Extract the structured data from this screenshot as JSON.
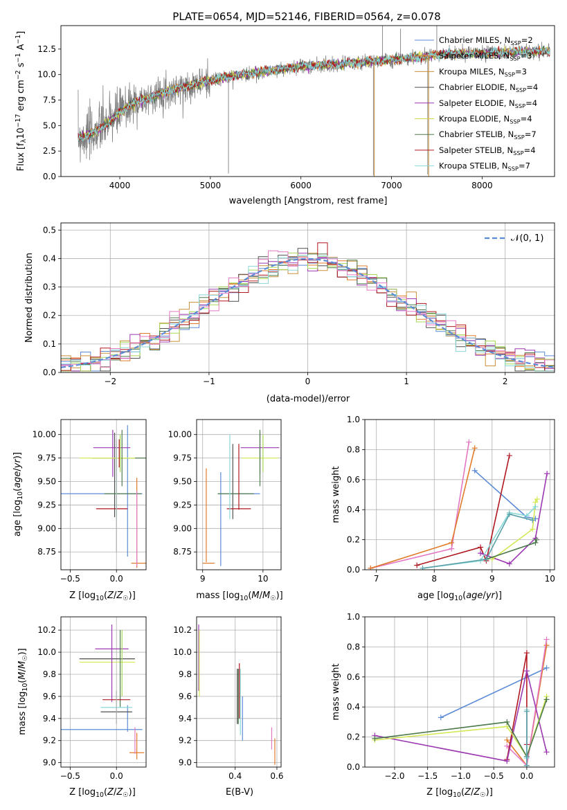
{
  "figure_title": "PLATE=0654, MJD=52146, FIBERID=0564, z=0.078",
  "model_colors": [
    "#5b8bd6",
    "#e07b2a",
    "#c98f3a",
    "#4f4f4f",
    "#9b37b0",
    "#d4d44a",
    "#4c7a4c",
    "#b0171f",
    "#88d8d8"
  ],
  "chart_data": [
    {
      "id": "spectrum",
      "type": "line",
      "title": "PLATE=0654, MJD=52146, FIBERID=0564, z=0.078",
      "xlabel": "wavelength [Angstrom, rest frame]",
      "ylabel": "Flux [f_λ10^-17 erg cm^-2 s^-1 A^-1]",
      "xlim": [
        3350,
        8800
      ],
      "ylim": [
        0,
        14.8
      ],
      "xticks": [
        4000,
        5000,
        6000,
        7000,
        8000
      ],
      "yticks": [
        0.0,
        2.5,
        5.0,
        7.5,
        10.0,
        12.5
      ],
      "grid": false,
      "legend_position": "top-right",
      "legend": [
        {
          "name": "Chabrier MILES, N_SSP=2",
          "base": "Chabrier MILES, N",
          "sub": "SSP",
          "tail": "=2",
          "color": "#5b8bd6"
        },
        {
          "name": "Salpeter MILES, N_SSP=3",
          "base": "Salpeter MILES, N",
          "sub": "SSP",
          "tail": "=3",
          "color": "#e07b2a"
        },
        {
          "name": "Kroupa MILES, N_SSP=3",
          "base": "Kroupa MILES, N",
          "sub": "SSP",
          "tail": "=3",
          "color": "#c98f3a"
        },
        {
          "name": "Chabrier ELODIE, N_SSP=4",
          "base": "Chabrier ELODIE, N",
          "sub": "SSP",
          "tail": "=4",
          "color": "#4f4f4f"
        },
        {
          "name": "Salpeter ELODIE, N_SSP=4",
          "base": "Salpeter ELODIE, N",
          "sub": "SSP",
          "tail": "=4",
          "color": "#9b37b0"
        },
        {
          "name": "Kroupa ELODIE, N_SSP=4",
          "base": "Kroupa ELODIE, N",
          "sub": "SSP",
          "tail": "=4",
          "color": "#d4d44a"
        },
        {
          "name": "Chabrier STELIB, N_SSP=7",
          "base": "Chabrier STELIB, N",
          "sub": "SSP",
          "tail": "=7",
          "color": "#4c7a4c"
        },
        {
          "name": "Salpeter STELIB, N_SSP=4",
          "base": "Salpeter STELIB, N",
          "sub": "SSP",
          "tail": "=4",
          "color": "#b0171f"
        },
        {
          "name": "Kroupa STELIB, N_SSP=7",
          "base": "Kroupa STELIB, N",
          "sub": "SSP",
          "tail": "=7",
          "color": "#88d8d8"
        }
      ],
      "continuum": [
        [
          3540,
          3.8
        ],
        [
          3700,
          4.2
        ],
        [
          3900,
          5.5
        ],
        [
          4100,
          7.0
        ],
        [
          4400,
          8.0
        ],
        [
          4800,
          9.0
        ],
        [
          5200,
          9.8
        ],
        [
          5600,
          10.3
        ],
        [
          6000,
          10.8
        ],
        [
          6400,
          11.0
        ],
        [
          6800,
          11.3
        ],
        [
          7200,
          11.6
        ],
        [
          7600,
          12.0
        ],
        [
          8000,
          12.1
        ],
        [
          8400,
          12.2
        ],
        [
          8750,
          12.3
        ]
      ],
      "data_spikes": [
        [
          5200,
          0.3
        ],
        [
          6800,
          0.1
        ],
        [
          7400,
          0.2
        ],
        [
          6900,
          14.8
        ],
        [
          7100,
          14.5
        ],
        [
          7500,
          14.8
        ]
      ]
    },
    {
      "id": "residuals",
      "type": "histogram",
      "xlabel": "(data-model)/error",
      "ylabel": "Normed distribution",
      "xlim": [
        -2.5,
        2.5
      ],
      "ylim": [
        0,
        0.525
      ],
      "xticks": [
        -2,
        -1,
        0,
        1,
        2
      ],
      "yticks": [
        0.0,
        0.1,
        0.2,
        0.3,
        0.4,
        0.5
      ],
      "grid": true,
      "legend_position": "top-right",
      "reference_label": "𝒩(0, 1)",
      "reference_color": "#5b8bd6",
      "bin_width": 0.1
    },
    {
      "id": "age-vs-Z",
      "type": "errorbar",
      "xlabel": "Z [log10(Z/Z☉)]",
      "ylabel": "age  [log10(age/yr)]",
      "xlim": [
        -0.6,
        0.32
      ],
      "ylim": [
        8.56,
        10.16
      ],
      "xticks": [
        -0.5,
        0.0
      ],
      "yticks": [
        8.75,
        9.0,
        9.25,
        9.5,
        9.75,
        10.0
      ],
      "grid": true
    },
    {
      "id": "age-vs-mass",
      "type": "errorbar",
      "xlabel": "mass [log10(M/M☉)]",
      "xlim": [
        8.9,
        10.3
      ],
      "ylim": [
        8.56,
        10.16
      ],
      "xticks": [
        9,
        10
      ],
      "yticks": [
        8.75,
        9.0,
        9.25,
        9.5,
        9.75,
        10.0
      ],
      "grid": true
    },
    {
      "id": "weight-vs-age",
      "type": "line",
      "xlabel": "age  [log10(age/yr)]",
      "ylabel": "mass weight",
      "xlim": [
        6.8,
        10.08
      ],
      "ylim": [
        0,
        1.0
      ],
      "xticks": [
        7,
        8,
        9,
        10
      ],
      "yticks": [
        0.0,
        0.2,
        0.4,
        0.6,
        0.8,
        1.0
      ],
      "grid": true,
      "series": [
        {
          "color": "#e377c2",
          "points": [
            [
              6.9,
              0.01
            ],
            [
              8.3,
              0.14
            ],
            [
              8.6,
              0.85
            ]
          ]
        },
        {
          "color": "#e07b2a",
          "points": [
            [
              6.9,
              0.01
            ],
            [
              8.3,
              0.18
            ],
            [
              8.7,
              0.81
            ]
          ]
        },
        {
          "color": "#5b8bd6",
          "points": [
            [
              8.7,
              0.66
            ],
            [
              9.6,
              0.35
            ],
            [
              9.75,
              0.34
            ]
          ]
        },
        {
          "color": "#b0171f",
          "points": [
            [
              7.7,
              0.03
            ],
            [
              8.8,
              0.15
            ],
            [
              8.9,
              0.06
            ],
            [
              9.3,
              0.76
            ]
          ]
        },
        {
          "color": "#9b37b0",
          "points": [
            [
              8.8,
              0.11
            ],
            [
              9.3,
              0.04
            ],
            [
              9.75,
              0.21
            ],
            [
              9.95,
              0.64
            ]
          ]
        },
        {
          "color": "#d4e85a",
          "points": [
            [
              9.0,
              0.07
            ],
            [
              9.7,
              0.27
            ],
            [
              9.75,
              0.45
            ],
            [
              9.78,
              0.47
            ]
          ]
        },
        {
          "color": "#4c7a4c",
          "points": [
            [
              8.9,
              0.07
            ],
            [
              9.75,
              0.18
            ],
            [
              9.77,
              0.2
            ]
          ]
        },
        {
          "color": "#88d8d8",
          "points": [
            [
              7.8,
              0.01
            ],
            [
              8.8,
              0.06
            ],
            [
              9.3,
              0.38
            ],
            [
              9.6,
              0.36
            ],
            [
              9.75,
              0.42
            ]
          ]
        },
        {
          "color": "#5aa0a8",
          "points": [
            [
              7.8,
              0.01
            ],
            [
              8.9,
              0.07
            ],
            [
              9.3,
              0.37
            ],
            [
              9.7,
              0.33
            ]
          ]
        }
      ]
    },
    {
      "id": "mass-vs-Z",
      "type": "errorbar",
      "xlabel": "Z [log10(Z/Z☉)]",
      "ylabel": "mass [log10(M/M☉)]",
      "xlim": [
        -0.6,
        0.32
      ],
      "ylim": [
        8.96,
        10.32
      ],
      "xticks": [
        -0.5,
        0.0
      ],
      "yticks": [
        9.0,
        9.2,
        9.4,
        9.6,
        9.8,
        10.0,
        10.2
      ],
      "grid": true
    },
    {
      "id": "mass-vs-EBV",
      "type": "errorbar",
      "xlabel": "E(B-V)",
      "xlim": [
        0.215,
        0.62
      ],
      "ylim": [
        8.96,
        10.32
      ],
      "xticks": [
        0.4,
        0.6
      ],
      "yticks": [
        9.0,
        9.2,
        9.4,
        9.6,
        9.8,
        10.0,
        10.2
      ],
      "grid": true
    },
    {
      "id": "weight-vs-Z",
      "type": "line",
      "xlabel": "Z [log10(Z/Z☉)]",
      "ylabel": "mass weight",
      "xlim": [
        -2.45,
        0.42
      ],
      "ylim": [
        0,
        1.0
      ],
      "xticks": [
        -2.0,
        -1.5,
        -1.0,
        -0.5,
        0.0
      ],
      "yticks": [
        0.0,
        0.2,
        0.4,
        0.6,
        0.8,
        1.0
      ],
      "grid": true,
      "series": [
        {
          "color": "#5b8bd6",
          "points": [
            [
              -1.3,
              0.33
            ],
            [
              0.3,
              0.66
            ]
          ]
        },
        {
          "color": "#e07b2a",
          "points": [
            [
              -0.3,
              0.18
            ],
            [
              0.0,
              0.01
            ],
            [
              0.3,
              0.81
            ]
          ]
        },
        {
          "color": "#e377c2",
          "points": [
            [
              -0.3,
              0.14
            ],
            [
              0.0,
              0.01
            ],
            [
              0.3,
              0.85
            ]
          ]
        },
        {
          "color": "#b0171f",
          "points": [
            [
              -0.3,
              0.05
            ],
            [
              0.0,
              0.76
            ],
            [
              0.0,
              0.15
            ]
          ]
        },
        {
          "color": "#9b37b0",
          "points": [
            [
              -2.3,
              0.21
            ],
            [
              -0.3,
              0.04
            ],
            [
              0.0,
              0.64
            ],
            [
              0.3,
              0.1
            ]
          ]
        },
        {
          "color": "#d4e85a",
          "points": [
            [
              -2.3,
              0.18
            ],
            [
              -0.3,
              0.27
            ],
            [
              0.0,
              0.07
            ],
            [
              0.3,
              0.47
            ]
          ]
        },
        {
          "color": "#4c7a4c",
          "points": [
            [
              -2.3,
              0.19
            ],
            [
              -0.3,
              0.3
            ],
            [
              0.0,
              0.07
            ],
            [
              0.3,
              0.45
            ]
          ]
        },
        {
          "color": "#88d8d8",
          "points": [
            [
              0.0,
              0.01
            ],
            [
              0.0,
              0.38
            ],
            [
              0.0,
              0.06
            ]
          ]
        },
        {
          "color": "#5aa0a8",
          "points": [
            [
              0.0,
              0.01
            ],
            [
              0.0,
              0.37
            ],
            [
              0.0,
              0.07
            ]
          ]
        }
      ]
    }
  ]
}
